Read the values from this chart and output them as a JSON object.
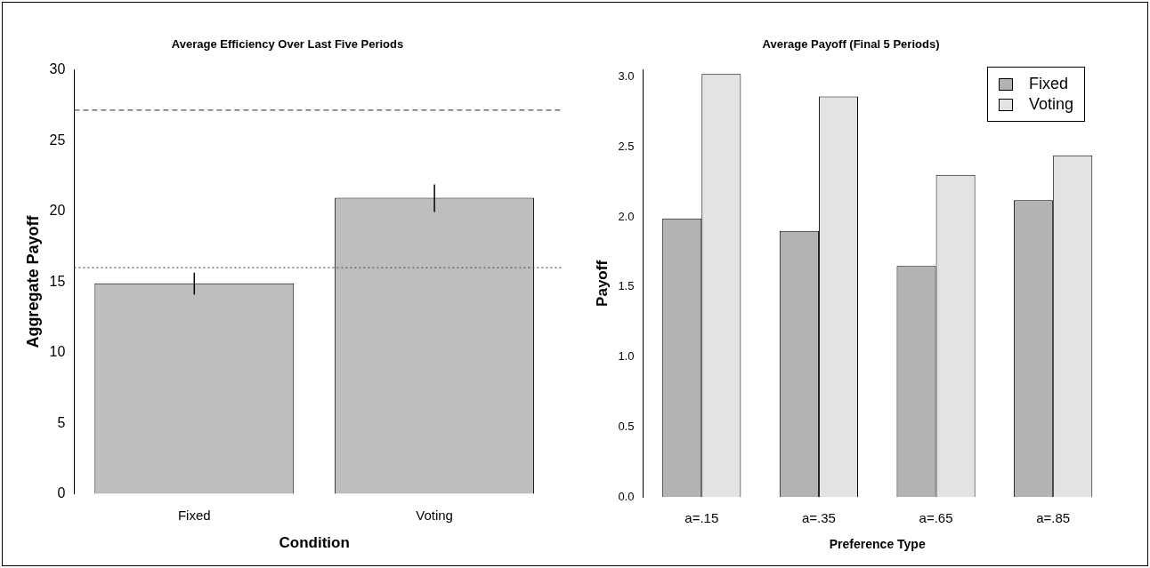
{
  "chart_data": [
    {
      "type": "bar",
      "title": "Average Efficiency Over Last Five Periods",
      "xlabel": "Condition",
      "ylabel": "Aggregate Payoff",
      "categories": [
        "Fixed",
        "Voting"
      ],
      "values": [
        14.9,
        20.95
      ],
      "color": "#bebebe",
      "errors": [
        [
          14.1,
          15.65
        ],
        [
          19.95,
          21.9
        ]
      ],
      "ylim": [
        0,
        30
      ],
      "yticks": [
        0,
        5,
        10,
        15,
        20,
        25,
        30
      ],
      "ref_lines": [
        {
          "axis": "y",
          "value": 27.15,
          "color": "#555555",
          "line_style": "dashed"
        },
        {
          "axis": "y",
          "value": 16,
          "color": "#555555",
          "line_style": "dotted"
        }
      ]
    },
    {
      "type": "bar",
      "title": "Average Payoff (Final 5 Periods)",
      "xlabel": "Preference Type",
      "ylabel": "Payoff",
      "categories": [
        "a=.15",
        "a=.35",
        "a=.65",
        "a=.85"
      ],
      "series": [
        {
          "name": "Fixed",
          "color": "#b3b3b3",
          "values": [
            1.99,
            1.9,
            1.65,
            2.12
          ]
        },
        {
          "name": "Voting",
          "color": "#e3e3e3",
          "values": [
            3.02,
            2.86,
            2.3,
            2.44
          ]
        }
      ],
      "ylim": [
        0,
        3.05
      ],
      "yticks": [
        {
          "value": 0,
          "label": "0.0"
        },
        {
          "value": 0.5,
          "label": "0.5"
        },
        {
          "value": 1,
          "label": "1.0"
        },
        {
          "value": 1.5,
          "label": "1.5"
        },
        {
          "value": 2,
          "label": "2.0"
        },
        {
          "value": 2.5,
          "label": "2.5"
        },
        {
          "value": 3,
          "label": "3.0"
        }
      ],
      "legend": "top right"
    }
  ]
}
